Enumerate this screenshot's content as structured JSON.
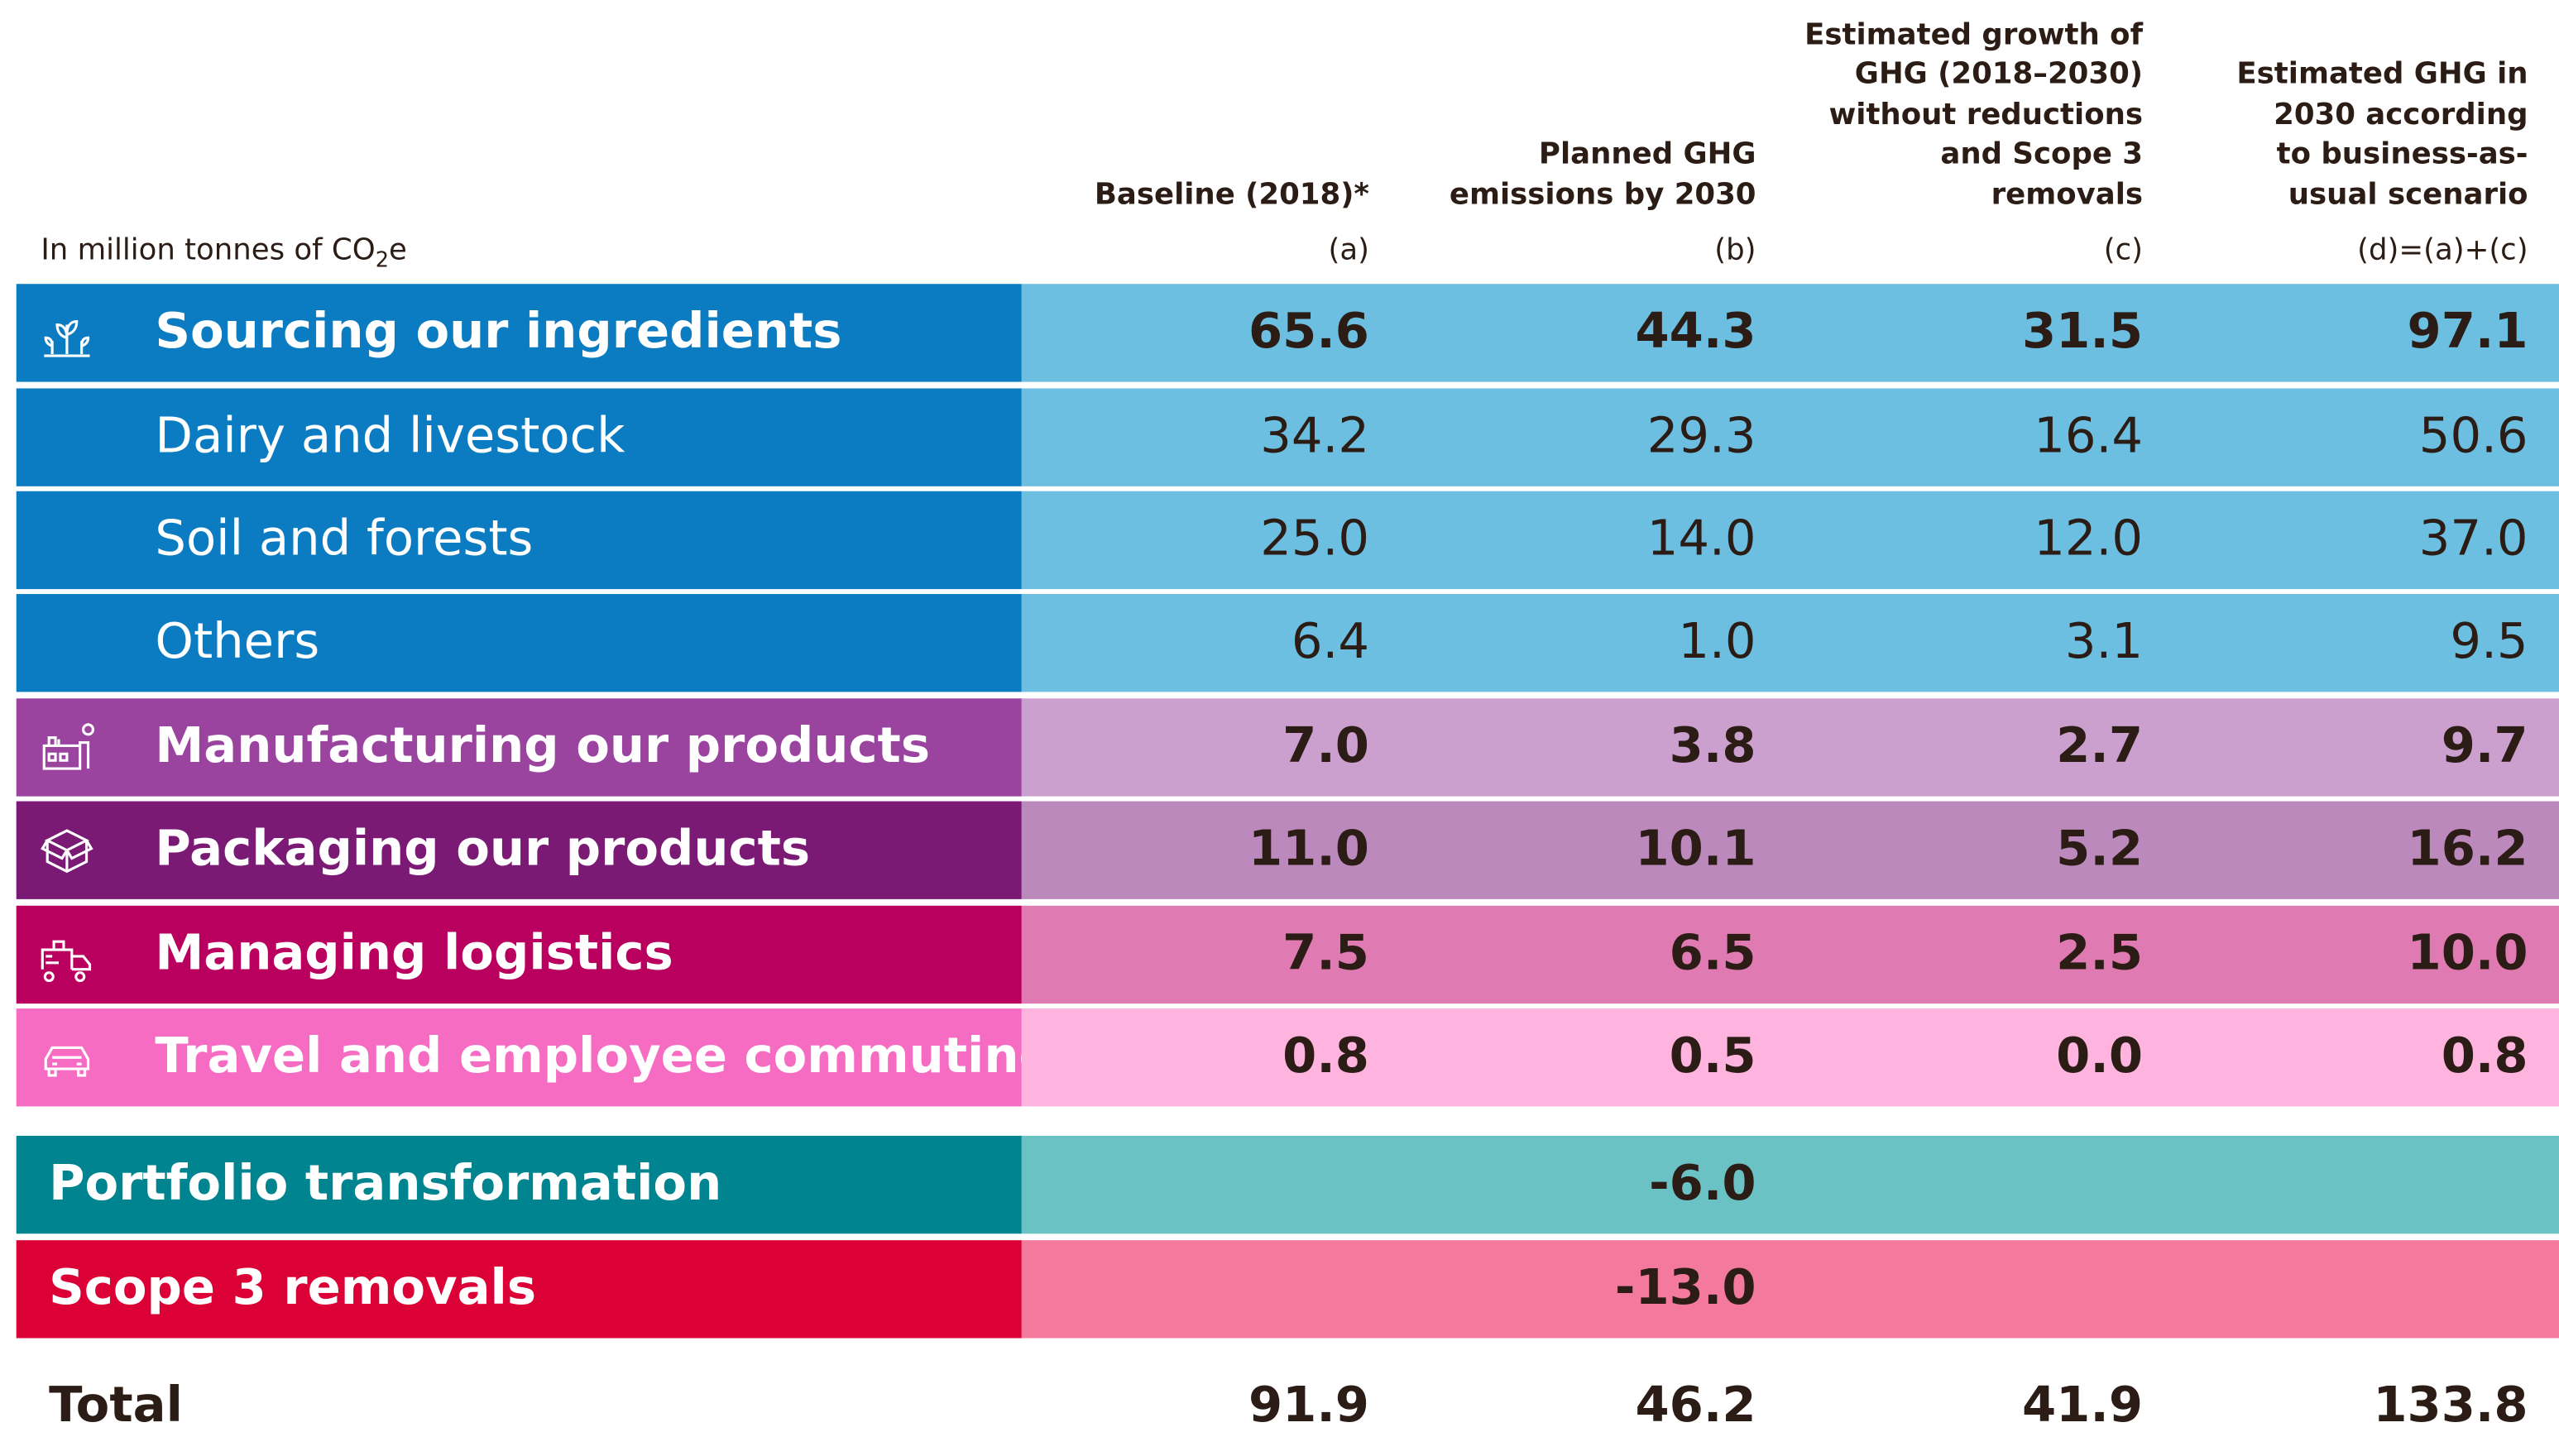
{
  "header": {
    "unit_note": {
      "prefix": "In million tonnes of CO",
      "sub": "2",
      "suffix": "e"
    },
    "columns": [
      {
        "title": [
          "Baseline (2018)*"
        ],
        "label": "(a)"
      },
      {
        "title": [
          "Planned GHG",
          "emissions by 2030"
        ],
        "label": "(b)"
      },
      {
        "title": [
          "Estimated growth of",
          "GHG (2018–2030)",
          "without reductions",
          "and Scope 3",
          "removals"
        ],
        "label": "(c)"
      },
      {
        "title": [
          "Estimated GHG in",
          "2030 according",
          "to business-as-",
          "usual scenario"
        ],
        "label": "(d)=(a)+(c)"
      }
    ]
  },
  "rows": [
    {
      "label": "Sourcing our ingredients",
      "level": "main",
      "icon": "plant",
      "color": "#0b7cc1",
      "fill": "#6cbfe1",
      "values": [
        "65.6",
        "44.3",
        "31.5",
        "97.1"
      ]
    },
    {
      "label": "Dairy and livestock",
      "level": "sub",
      "color": "#0b7cc1",
      "fill": "#6cbfe1",
      "values": [
        "34.2",
        "29.3",
        "16.4",
        "50.6"
      ]
    },
    {
      "label": "Soil and forests",
      "level": "sub",
      "color": "#0b7cc1",
      "fill": "#6cbfe1",
      "values": [
        "25.0",
        "14.0",
        "12.0",
        "37.0"
      ]
    },
    {
      "label": "Others",
      "level": "sub",
      "color": "#0b7cc1",
      "fill": "#6cbfe1",
      "values": [
        "6.4",
        "1.0",
        "3.1",
        "9.5"
      ]
    },
    {
      "label": "Manufacturing our products",
      "level": "main",
      "icon": "factory",
      "color": "#9a44a0",
      "fill": "#cca0ce",
      "values": [
        "7.0",
        "3.8",
        "2.7",
        "9.7"
      ]
    },
    {
      "label": "Packaging our products",
      "level": "main",
      "icon": "box",
      "color": "#7b1a75",
      "fill": "#bc89bc",
      "values": [
        "11.0",
        "10.1",
        "5.2",
        "16.2"
      ]
    },
    {
      "label": "Managing logistics",
      "level": "main",
      "icon": "truck",
      "color": "#b9005f",
      "fill": "#e07ab3",
      "values": [
        "7.5",
        "6.5",
        "2.5",
        "10.0"
      ]
    },
    {
      "label": "Travel and employee commuting",
      "level": "main",
      "icon": "car",
      "color": "#f76cc3",
      "fill": "#feb4de",
      "values": [
        "0.8",
        "0.5",
        "0.0",
        "0.8"
      ]
    }
  ],
  "adjustments": [
    {
      "label": "Portfolio transformation",
      "color": "#00848f",
      "fill": "#6ac2c5",
      "value": "-6.0"
    },
    {
      "label": "Scope 3 removals",
      "color": "#db0035",
      "fill": "#f37a9c",
      "value": "-13.0"
    }
  ],
  "total": {
    "label": "Total",
    "values": [
      "91.9",
      "46.2",
      "41.9",
      "133.8"
    ]
  }
}
